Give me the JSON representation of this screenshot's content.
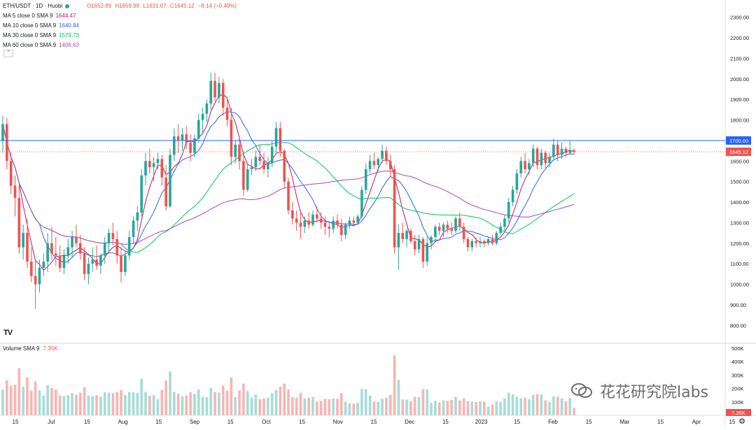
{
  "header": {
    "symbol": "ETH/USDT · 1D · Huobi",
    "open": "O1652.89",
    "high": "H1659.99",
    "low": "L1631.07",
    "close": "C1645.12",
    "change": "−8.14 (−0.49%)"
  },
  "indicators": [
    {
      "label": "MA 5 close 0 SMA 9",
      "value": "1644.47",
      "color": "#c2185b"
    },
    {
      "label": "MA 10 close 0 SMA 9",
      "value": "1640.84",
      "color": "#2962ff"
    },
    {
      "label": "MA 30 close 0 SMA 9",
      "value": "1579.73",
      "color": "#00c853"
    },
    {
      "label": "MA 60 close 0 SMA 9",
      "value": "1406.63",
      "color": "#ab47bc"
    }
  ],
  "volume": {
    "label": "Volume SMA 9",
    "value": "7.35K",
    "color": "#ef5350"
  },
  "price_axis": {
    "ticks": [
      "2300.00",
      "2200.00",
      "2100.00",
      "2000.00",
      "1900.00",
      "1800.00",
      "1700.00",
      "1600.00",
      "1500.00",
      "1400.00",
      "1300.00",
      "1200.00",
      "1100.00",
      "1000.00",
      "900.00",
      "800.00"
    ],
    "horizontal_line_label": "1700.00",
    "last_price_label": "1645.12"
  },
  "volume_axis": {
    "ticks": [
      "500K",
      "400K",
      "300K",
      "200K",
      "100K"
    ],
    "last_label": "7.35K"
  },
  "time_axis": {
    "ticks": [
      "15",
      "Jul",
      "15",
      "Aug",
      "15",
      "Sep",
      "15",
      "Oct",
      "15",
      "Nov",
      "15",
      "Dec",
      "15",
      "2023",
      "15",
      "Feb",
      "15",
      "Mar",
      "15",
      "Apr",
      "15"
    ]
  },
  "watermark": {
    "text": "花花研究院labs"
  },
  "colors": {
    "up": "#26a69a",
    "down": "#ef5350",
    "up_vol": "#a7dcd6",
    "down_vol": "#f7b5b3",
    "hline": "#2962ff",
    "grid": "#f0f3fa",
    "axis_text": "#131722"
  },
  "chart_data": {
    "type": "candlestick",
    "symbol": "ETH/USDT",
    "interval": "1D",
    "ylim": [
      750,
      2350
    ],
    "grid": false,
    "series_ohlc": [
      [
        1700,
        1820,
        1640,
        1780
      ],
      [
        1780,
        1810,
        1560,
        1600
      ],
      [
        1600,
        1640,
        1440,
        1480
      ],
      [
        1480,
        1530,
        1330,
        1420
      ],
      [
        1420,
        1480,
        1150,
        1180
      ],
      [
        1180,
        1290,
        1120,
        1250
      ],
      [
        1250,
        1320,
        1080,
        1110
      ],
      [
        1110,
        1180,
        1010,
        1040
      ],
      [
        1040,
        1120,
        880,
        1000
      ],
      [
        1000,
        1120,
        960,
        1080
      ],
      [
        1080,
        1150,
        1040,
        1110
      ],
      [
        1110,
        1250,
        1060,
        1200
      ],
      [
        1200,
        1280,
        1120,
        1150
      ],
      [
        1150,
        1230,
        1090,
        1140
      ],
      [
        1140,
        1190,
        1060,
        1080
      ],
      [
        1080,
        1170,
        1050,
        1140
      ],
      [
        1140,
        1220,
        1100,
        1180
      ],
      [
        1180,
        1260,
        1130,
        1230
      ],
      [
        1230,
        1290,
        1180,
        1200
      ],
      [
        1200,
        1240,
        1120,
        1150
      ],
      [
        1150,
        1180,
        1020,
        1050
      ],
      [
        1050,
        1130,
        1000,
        1100
      ],
      [
        1100,
        1180,
        1060,
        1120
      ],
      [
        1120,
        1190,
        1070,
        1090
      ],
      [
        1090,
        1150,
        1050,
        1140
      ],
      [
        1140,
        1230,
        1100,
        1200
      ],
      [
        1200,
        1270,
        1150,
        1250
      ],
      [
        1250,
        1300,
        1190,
        1220
      ],
      [
        1220,
        1260,
        1100,
        1140
      ],
      [
        1140,
        1180,
        1010,
        1060
      ],
      [
        1060,
        1160,
        1040,
        1140
      ],
      [
        1140,
        1260,
        1120,
        1230
      ],
      [
        1230,
        1330,
        1200,
        1310
      ],
      [
        1310,
        1380,
        1260,
        1350
      ],
      [
        1350,
        1560,
        1330,
        1530
      ],
      [
        1530,
        1640,
        1480,
        1600
      ],
      [
        1600,
        1660,
        1540,
        1570
      ],
      [
        1570,
        1620,
        1500,
        1590
      ],
      [
        1590,
        1640,
        1560,
        1610
      ],
      [
        1610,
        1630,
        1480,
        1520
      ],
      [
        1520,
        1580,
        1360,
        1380
      ],
      [
        1380,
        1660,
        1370,
        1630
      ],
      [
        1630,
        1760,
        1600,
        1720
      ],
      [
        1720,
        1780,
        1640,
        1700
      ],
      [
        1700,
        1760,
        1650,
        1730
      ],
      [
        1730,
        1770,
        1660,
        1690
      ],
      [
        1690,
        1730,
        1600,
        1640
      ],
      [
        1640,
        1730,
        1620,
        1710
      ],
      [
        1710,
        1830,
        1690,
        1800
      ],
      [
        1800,
        1860,
        1740,
        1830
      ],
      [
        1830,
        1900,
        1790,
        1880
      ],
      [
        1880,
        2030,
        1850,
        1990
      ],
      [
        1990,
        2030,
        1890,
        1910
      ],
      [
        1910,
        2010,
        1880,
        1980
      ],
      [
        1980,
        2000,
        1820,
        1860
      ],
      [
        1860,
        1900,
        1770,
        1800
      ],
      [
        1800,
        1860,
        1580,
        1620
      ],
      [
        1620,
        1700,
        1590,
        1680
      ],
      [
        1680,
        1720,
        1560,
        1600
      ],
      [
        1600,
        1640,
        1430,
        1460
      ],
      [
        1460,
        1590,
        1450,
        1560
      ],
      [
        1560,
        1610,
        1530,
        1570
      ],
      [
        1570,
        1650,
        1550,
        1620
      ],
      [
        1620,
        1680,
        1580,
        1600
      ],
      [
        1600,
        1640,
        1540,
        1560
      ],
      [
        1560,
        1620,
        1520,
        1590
      ],
      [
        1590,
        1700,
        1570,
        1670
      ],
      [
        1670,
        1790,
        1640,
        1760
      ],
      [
        1760,
        1790,
        1620,
        1650
      ],
      [
        1650,
        1660,
        1470,
        1500
      ],
      [
        1500,
        1520,
        1340,
        1360
      ],
      [
        1360,
        1400,
        1290,
        1320
      ],
      [
        1320,
        1360,
        1260,
        1300
      ],
      [
        1300,
        1350,
        1220,
        1280
      ],
      [
        1280,
        1330,
        1250,
        1310
      ],
      [
        1310,
        1350,
        1270,
        1290
      ],
      [
        1290,
        1360,
        1280,
        1340
      ],
      [
        1340,
        1380,
        1300,
        1320
      ],
      [
        1320,
        1350,
        1270,
        1300
      ],
      [
        1300,
        1330,
        1240,
        1280
      ],
      [
        1280,
        1310,
        1230,
        1270
      ],
      [
        1270,
        1330,
        1250,
        1310
      ],
      [
        1310,
        1340,
        1270,
        1290
      ],
      [
        1290,
        1320,
        1210,
        1240
      ],
      [
        1240,
        1300,
        1220,
        1290
      ],
      [
        1290,
        1330,
        1270,
        1310
      ],
      [
        1310,
        1330,
        1280,
        1300
      ],
      [
        1300,
        1340,
        1290,
        1330
      ],
      [
        1330,
        1480,
        1320,
        1460
      ],
      [
        1460,
        1590,
        1440,
        1560
      ],
      [
        1560,
        1630,
        1540,
        1600
      ],
      [
        1600,
        1640,
        1560,
        1580
      ],
      [
        1580,
        1620,
        1550,
        1610
      ],
      [
        1610,
        1680,
        1590,
        1650
      ],
      [
        1650,
        1670,
        1580,
        1600
      ],
      [
        1600,
        1630,
        1520,
        1560
      ],
      [
        1560,
        1580,
        1150,
        1180
      ],
      [
        1180,
        1290,
        1070,
        1250
      ],
      [
        1250,
        1300,
        1200,
        1220
      ],
      [
        1220,
        1270,
        1180,
        1260
      ],
      [
        1260,
        1270,
        1200,
        1210
      ],
      [
        1210,
        1240,
        1140,
        1170
      ],
      [
        1170,
        1240,
        1150,
        1220
      ],
      [
        1220,
        1230,
        1080,
        1110
      ],
      [
        1110,
        1230,
        1090,
        1200
      ],
      [
        1200,
        1240,
        1170,
        1230
      ],
      [
        1230,
        1290,
        1210,
        1280
      ],
      [
        1280,
        1300,
        1240,
        1260
      ],
      [
        1260,
        1300,
        1230,
        1290
      ],
      [
        1290,
        1310,
        1250,
        1270
      ],
      [
        1270,
        1300,
        1240,
        1260
      ],
      [
        1260,
        1330,
        1250,
        1320
      ],
      [
        1320,
        1350,
        1260,
        1280
      ],
      [
        1280,
        1300,
        1200,
        1220
      ],
      [
        1220,
        1230,
        1160,
        1180
      ],
      [
        1180,
        1220,
        1160,
        1210
      ],
      [
        1210,
        1230,
        1180,
        1200
      ],
      [
        1200,
        1230,
        1180,
        1210
      ],
      [
        1210,
        1220,
        1180,
        1200
      ],
      [
        1200,
        1230,
        1190,
        1220
      ],
      [
        1220,
        1240,
        1190,
        1200
      ],
      [
        1200,
        1260,
        1190,
        1250
      ],
      [
        1250,
        1300,
        1240,
        1280
      ],
      [
        1280,
        1340,
        1260,
        1320
      ],
      [
        1320,
        1420,
        1300,
        1400
      ],
      [
        1400,
        1480,
        1380,
        1460
      ],
      [
        1460,
        1560,
        1440,
        1540
      ],
      [
        1540,
        1620,
        1520,
        1600
      ],
      [
        1600,
        1640,
        1540,
        1560
      ],
      [
        1560,
        1610,
        1530,
        1590
      ],
      [
        1590,
        1680,
        1570,
        1660
      ],
      [
        1660,
        1670,
        1560,
        1580
      ],
      [
        1580,
        1660,
        1560,
        1640
      ],
      [
        1640,
        1650,
        1560,
        1590
      ],
      [
        1590,
        1640,
        1570,
        1620
      ],
      [
        1620,
        1710,
        1600,
        1680
      ],
      [
        1680,
        1700,
        1600,
        1630
      ],
      [
        1630,
        1690,
        1610,
        1660
      ],
      [
        1660,
        1670,
        1620,
        1640
      ],
      [
        1640,
        1700,
        1630,
        1653
      ],
      [
        1653,
        1660,
        1631,
        1645
      ]
    ],
    "series": [
      {
        "name": "MA 5 close 0 SMA 9",
        "last": 1644.47
      },
      {
        "name": "MA 10 close 0 SMA 9",
        "last": 1640.84
      },
      {
        "name": "MA 30 close 0 SMA 9",
        "last": 1579.73
      },
      {
        "name": "MA 60 close 0 SMA 9",
        "last": 1406.63
      }
    ],
    "volume": {
      "label": "Volume SMA 9",
      "last": "7.35K",
      "ylim": [
        0,
        500000
      ]
    },
    "horizontal_line": 1700,
    "last_price": 1645.12
  }
}
